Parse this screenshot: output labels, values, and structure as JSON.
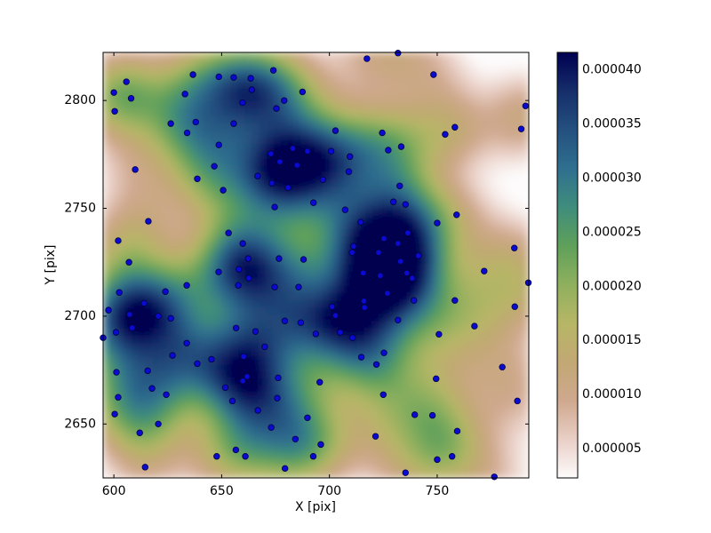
{
  "chart_data": {
    "type": "scatter",
    "xlabel": "X [pix]",
    "ylabel": "Y [pix]",
    "xlim": [
      595,
      792.5
    ],
    "ylim": [
      2625,
      2822.3
    ],
    "xticks": [
      600,
      650,
      700,
      750
    ],
    "yticks": [
      2650,
      2700,
      2750,
      2800
    ],
    "color": "#0a0ad0",
    "edgecolor": "#000044",
    "colormap": [
      "#fdfbfb",
      "#e9cfc6",
      "#cfa88e",
      "#c2a874",
      "#b6b666",
      "#8fb05e",
      "#5fa05a",
      "#3f8d7c",
      "#2f6f8f",
      "#24507f",
      "#162e6a",
      "#000050"
    ],
    "colorbar": {
      "lim": [
        2.3e-06,
        4.16e-05
      ],
      "ticks": [
        {
          "value": 5e-06,
          "label": "0.000005"
        },
        {
          "value": 1e-05,
          "label": "0.000010"
        },
        {
          "value": 1.5e-05,
          "label": "0.000015"
        },
        {
          "value": 2e-05,
          "label": "0.000020"
        },
        {
          "value": 2.5e-05,
          "label": "0.000025"
        },
        {
          "value": 3e-05,
          "label": "0.000030"
        },
        {
          "value": 3.5e-05,
          "label": "0.000035"
        },
        {
          "value": 4e-05,
          "label": "0.000040"
        }
      ]
    },
    "x": [
      605.8,
      600,
      600.4,
      608,
      609.9,
      616,
      602,
      607,
      602.5,
      597.5,
      601,
      607.3,
      608.5,
      614,
      620.6,
      623.9,
      626.4,
      595,
      601.2,
      602,
      600.4,
      615.7,
      617.7,
      624.3,
      627.2,
      633.8,
      638.7,
      620.6,
      612,
      614.5,
      626.4,
      633,
      636.7,
      638,
      634,
      638.7,
      648.7,
      655.6,
      663.5,
      664,
      674,
      659.7,
      655.6,
      648.7,
      646.6,
      650.7,
      679,
      675.4,
      687.5,
      672.8,
      683,
      677,
      666.7,
      673.3,
      685,
      680.8,
      689.8,
      702.8,
      700.8,
      709.5,
      709,
      697,
      692.6,
      674.6,
      707.3,
      714.5,
      653.2,
      659.8,
      662.3,
      648.6,
      658,
      662.6,
      657.7,
      633.8,
      676.6,
      688,
      674.6,
      685.7,
      710.5,
      711.2,
      715.7,
      722.8,
      725.3,
      731.8,
      736.4,
      733,
      735.9,
      723.6,
      726.9,
      738.4,
      741.3,
      739.2,
      731.8,
      716,
      716.3,
      701.2,
      702.8,
      710.7,
      705,
      693.7,
      686.7,
      679.3,
      665.7,
      656.7,
      660.2,
      659.8,
      670,
      645.3,
      651.7,
      655,
      661.8,
      666.8,
      676.2,
      675.8,
      695.5,
      714.8,
      721.8,
      725.3,
      725,
      721.4,
      689.8,
      684.2,
      673,
      656.6,
      661,
      647.7,
      679.4,
      692.5,
      696,
      717.4,
      731.8,
      748.3,
      724.5,
      727.3,
      733.3,
      732.6,
      729.7,
      735.3,
      750,
      753.7,
      758.2,
      759,
      758.2,
      771.8,
      750.8,
      767.3,
      785.8,
      789,
      791,
      792.3,
      786,
      780.2,
      787.2,
      739.6,
      747.8,
      749.5,
      750,
      756.9,
      759.3,
      735.3,
      776.5
    ],
    "values": [
      2808.7,
      2803.7,
      2795,
      2801,
      2768,
      2744,
      2735,
      2725,
      2711,
      2702.8,
      2692.5,
      2700.8,
      2694.6,
      2706,
      2700,
      2711.4,
      2699,
      2690,
      2674,
      2662.4,
      2654.6,
      2674.7,
      2666.5,
      2663.6,
      2681.8,
      2687.5,
      2678,
      2650,
      2645.9,
      2630,
      2789.3,
      2803,
      2812,
      2790,
      2785,
      2763.7,
      2811,
      2810.7,
      2810.3,
      2805,
      2814,
      2799,
      2789.3,
      2779.4,
      2769.5,
      2758.4,
      2800,
      2796.3,
      2804,
      2775.3,
      2777.8,
      2771.6,
      2765,
      2761.7,
      2770,
      2759.6,
      2776.5,
      2786,
      2776.5,
      2774,
      2767,
      2763.3,
      2752.6,
      2750.6,
      2749.3,
      2743.6,
      2738.6,
      2733.7,
      2726.7,
      2720.5,
      2721.7,
      2717.6,
      2714.3,
      2714.3,
      2726.7,
      2726.3,
      2713.5,
      2713.5,
      2729.5,
      2732.4,
      2720,
      2729.5,
      2736,
      2733.7,
      2738.6,
      2725.4,
      2720,
      2718.8,
      2710.6,
      2717.6,
      2728,
      2707.3,
      2698.2,
      2707,
      2704,
      2704.4,
      2700.3,
      2690,
      2692.5,
      2691.8,
      2697,
      2697.8,
      2692.9,
      2694.5,
      2681.3,
      2670,
      2685.8,
      2680,
      2666.9,
      2660.7,
      2672,
      2656.3,
      2671.4,
      2662,
      2669.4,
      2681,
      2677.6,
      2683,
      2663.6,
      2644.3,
      2652.9,
      2643,
      2648.4,
      2638,
      2635,
      2635,
      2629.4,
      2635,
      2640.5,
      2819.4,
      2822,
      2812,
      2785,
      2777,
      2778.6,
      2760.4,
      2753,
      2751.8,
      2743.2,
      2784.3,
      2787.6,
      2747,
      2707.3,
      2720.9,
      2691.6,
      2695.4,
      2731.6,
      2786.8,
      2797.5,
      2715.5,
      2704.4,
      2676.4,
      2660.7,
      2654.3,
      2654,
      2671,
      2633.5,
      2635,
      2646.7,
      2627.4,
      2625.5
    ]
  }
}
